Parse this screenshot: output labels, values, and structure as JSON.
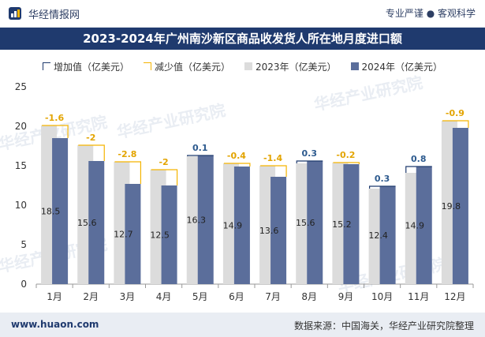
{
  "header": {
    "brand": "华经情报网",
    "slogan": "专业严谨 ● 客观科学"
  },
  "footer": {
    "site": "www.huaon.com",
    "source": "数据来源：中国海关，华经产业研究院整理"
  },
  "watermark": "华经产业研究院",
  "colors": {
    "title_bg": "#1f3a6e",
    "bar2023": "#dcdcdc",
    "bar2024": "#5b6e9b",
    "increase": "#1f3a6e",
    "decrease": "#f5b400",
    "label_dark": "#222222",
    "label_inc": "#2d5a8e",
    "label_dec": "#e3a400"
  },
  "chart_data": {
    "type": "bar",
    "title": "2023-2024年广州南沙新区商品收发货人所在地月度进口额",
    "categories": [
      "1月",
      "2月",
      "3月",
      "4月",
      "5月",
      "6月",
      "7月",
      "8月",
      "9月",
      "10月",
      "11月",
      "12月"
    ],
    "series": [
      {
        "name": "2023年（亿美元）",
        "values": [
          20.1,
          17.6,
          15.5,
          14.5,
          16.2,
          15.3,
          15.0,
          15.3,
          15.4,
          12.1,
          14.1,
          20.7
        ]
      },
      {
        "name": "2024年（亿美元）",
        "values": [
          18.5,
          15.6,
          12.7,
          12.5,
          16.3,
          14.9,
          13.6,
          15.6,
          15.2,
          12.4,
          14.9,
          19.8
        ]
      }
    ],
    "change": [
      -1.6,
      -2,
      -2.8,
      -2,
      0.1,
      -0.4,
      -1.4,
      0.3,
      -0.2,
      0.3,
      0.8,
      -0.9
    ],
    "change_labels": [
      "-1.6",
      "-2",
      "-2.8",
      "-2",
      "0.1",
      "-0.4",
      "-1.4",
      "0.3",
      "-0.2",
      "0.3",
      "0.8",
      "-0.9"
    ],
    "value_labels_2024": [
      "18.5",
      "15.6",
      "12.7",
      "12.5",
      "16.3",
      "14.9",
      "13.6",
      "15.6",
      "15.2",
      "12.4",
      "14.9",
      "19.8"
    ],
    "legend": [
      "增加值（亿美元）",
      "减少值（亿美元）",
      "2023年（亿美元）",
      "2024年（亿美元）"
    ],
    "yticks": [
      "0",
      "5",
      "10",
      "15",
      "20",
      "25"
    ],
    "ylim": [
      0,
      25
    ],
    "legend_position": "top"
  }
}
